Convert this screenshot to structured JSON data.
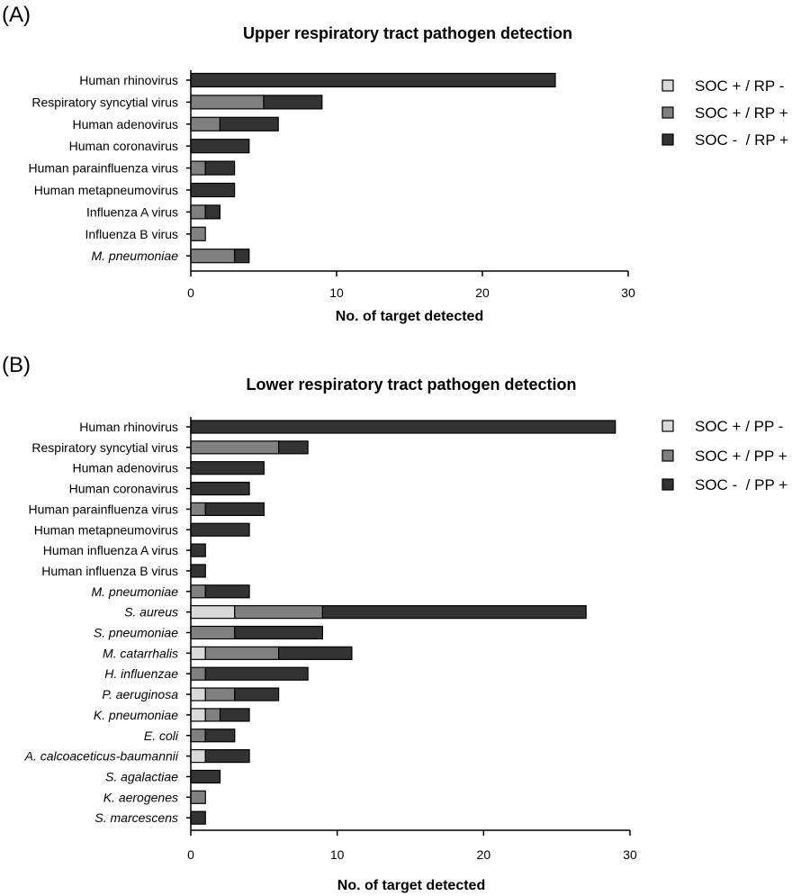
{
  "colors": {
    "soc_pos_test_neg": "#d9d9d9",
    "soc_pos_test_pos": "#808080",
    "soc_neg_test_pos": "#333333",
    "bar_stroke": "#000000"
  },
  "chart_data": [
    {
      "type": "bar",
      "orientation": "horizontal",
      "stacked": true,
      "panel": "(A)",
      "title": "Upper respiratory tract pathogen detection",
      "xlabel": "No. of target detected",
      "ylabel": "",
      "xlim": [
        0,
        30
      ],
      "xticks": [
        0,
        10,
        20,
        30
      ],
      "legend_position": "right",
      "grid": false,
      "categories": [
        "Human rhinovirus",
        "Respiratory syncytial virus",
        "Human adenovirus",
        "Human coronavirus",
        "Human parainfluenza virus",
        "Human metapneumovirus",
        "Influenza A virus",
        "Influenza B virus",
        "M. pneumoniae"
      ],
      "italic_categories": [
        "M. pneumoniae"
      ],
      "series": [
        {
          "name": "SOC + / RP -",
          "color_key": "soc_pos_test_neg",
          "values": [
            0,
            0,
            0,
            0,
            0,
            0,
            0,
            0,
            0
          ]
        },
        {
          "name": "SOC + / RP +",
          "color_key": "soc_pos_test_pos",
          "values": [
            0,
            5,
            2,
            0,
            1,
            0,
            1,
            1,
            3
          ]
        },
        {
          "name": "SOC -  / RP +",
          "color_key": "soc_neg_test_pos",
          "values": [
            25,
            4,
            4,
            4,
            2,
            3,
            1,
            0,
            1
          ]
        }
      ]
    },
    {
      "type": "bar",
      "orientation": "horizontal",
      "stacked": true,
      "panel": "(B)",
      "title": "Lower respiratory tract pathogen detection",
      "xlabel": "No. of target detected",
      "ylabel": "",
      "xlim": [
        0,
        30
      ],
      "xticks": [
        0,
        10,
        20,
        30
      ],
      "legend_position": "right",
      "grid": false,
      "categories": [
        "Human rhinovirus",
        "Respiratory syncytial virus",
        "Human adenovirus",
        "Human coronavirus",
        "Human parainfluenza virus",
        "Human metapneumovirus",
        "Human influenza A virus",
        "Human influenza B virus",
        "M. pneumoniae",
        "S. aureus",
        "S. pneumoniae",
        "M. catarrhalis",
        "H. influenzae",
        "P. aeruginosa",
        "K. pneumoniae",
        "E. coli",
        "A. calcoaceticus-baumannii",
        "S. agalactiae",
        "K. aerogenes",
        "S. marcescens"
      ],
      "italic_categories": [
        "M. pneumoniae",
        "S. aureus",
        "S. pneumoniae",
        "M. catarrhalis",
        "H. influenzae",
        "P. aeruginosa",
        "K. pneumoniae",
        "E. coli",
        "A. calcoaceticus-baumannii",
        "S. agalactiae",
        "K. aerogenes",
        "S. marcescens"
      ],
      "series": [
        {
          "name": "SOC + / PP -",
          "color_key": "soc_pos_test_neg",
          "values": [
            0,
            0,
            0,
            0,
            0,
            0,
            0,
            0,
            0,
            3,
            0,
            1,
            0,
            1,
            1,
            0,
            1,
            0,
            0,
            0
          ]
        },
        {
          "name": "SOC + / PP +",
          "color_key": "soc_pos_test_pos",
          "values": [
            0,
            6,
            0,
            0,
            1,
            0,
            0,
            0,
            1,
            6,
            3,
            5,
            1,
            2,
            1,
            1,
            0,
            0,
            1,
            0
          ]
        },
        {
          "name": "SOC -  / PP +",
          "color_key": "soc_neg_test_pos",
          "values": [
            29,
            2,
            5,
            4,
            4,
            4,
            1,
            1,
            3,
            18,
            6,
            5,
            7,
            3,
            2,
            2,
            3,
            2,
            0,
            1
          ]
        }
      ]
    }
  ]
}
